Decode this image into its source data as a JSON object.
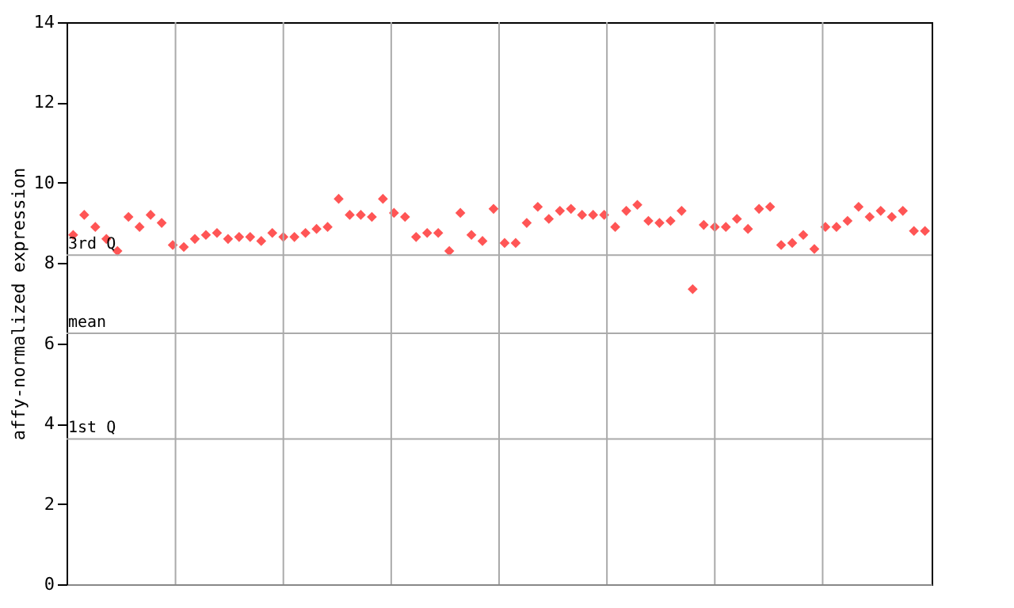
{
  "chart_data": {
    "type": "scatter",
    "ylabel": "affy-normalized expression",
    "categories": [
      null,
      null,
      null,
      null,
      null,
      null,
      null,
      null,
      null,
      null,
      null,
      null,
      null,
      null,
      null,
      null,
      null,
      null,
      null,
      null,
      null,
      null,
      null,
      null,
      null,
      null,
      null,
      null,
      null,
      null,
      null,
      null,
      null,
      null,
      null,
      null,
      null,
      null,
      null,
      null,
      null,
      null,
      null,
      null,
      null,
      null,
      null,
      null,
      null,
      null,
      null,
      null,
      null,
      null,
      null,
      null,
      null,
      null,
      null,
      null,
      null,
      null,
      null,
      null,
      null,
      null,
      null,
      null,
      null,
      null,
      null,
      null,
      null,
      null,
      null,
      null,
      null,
      null
    ],
    "series": [
      {
        "color": "#ff5555",
        "values": [
          8.7,
          9.2,
          8.9,
          8.6,
          8.3,
          9.15,
          8.9,
          9.2,
          9.0,
          8.45,
          8.4,
          8.6,
          8.7,
          8.75,
          8.6,
          8.65,
          8.65,
          8.55,
          8.75,
          8.65,
          8.65,
          8.75,
          8.85,
          8.9,
          9.6,
          9.2,
          9.2,
          9.15,
          9.6,
          9.25,
          9.15,
          8.65,
          8.75,
          8.75,
          8.3,
          9.25,
          8.7,
          8.55,
          9.35,
          8.5,
          8.5,
          9.0,
          9.4,
          9.1,
          9.3,
          9.35,
          9.2,
          9.2,
          9.2,
          8.9,
          9.3,
          9.45,
          9.05,
          9.0,
          9.05,
          9.3,
          7.35,
          8.95,
          8.9,
          8.9,
          9.1,
          8.85,
          9.35,
          9.4,
          8.45,
          8.5,
          8.7,
          8.35,
          8.9,
          8.9,
          9.05,
          9.4,
          9.15,
          9.3,
          9.15,
          9.3,
          8.8,
          8.8
        ]
      }
    ],
    "ylim": [
      0,
      14
    ],
    "yticks": [
      0,
      2,
      4,
      6,
      8,
      10,
      12,
      14
    ],
    "ref_lines": [
      {
        "axis": "y",
        "value": 8.2,
        "label": "3rd Q",
        "color": "#aaaaaa"
      },
      {
        "axis": "y",
        "value": 6.25,
        "label": "mean",
        "color": "#aaaaaa"
      },
      {
        "axis": "y",
        "value": 3.62,
        "label": "1st Q",
        "color": "#aaaaaa"
      }
    ],
    "grid": "x",
    "marker": "diamond",
    "tick_labels": "y"
  }
}
